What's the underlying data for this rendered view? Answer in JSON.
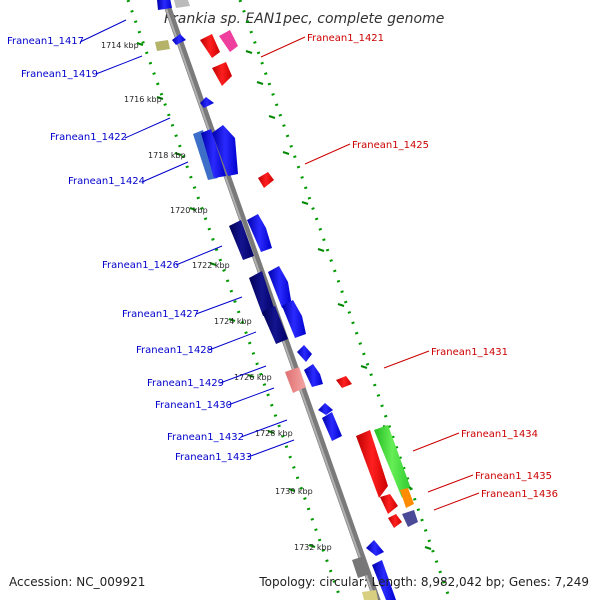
{
  "title": "Frankia sp. EAN1pec, complete genome",
  "footer": {
    "accession": "Accession: NC_009921",
    "summary": "Topology: circular; Length: 8,982,042 bp; Genes: 7,249"
  },
  "colors": {
    "forward_label": "#0000cc",
    "reverse_label": "#cc0000",
    "backbone": "#8a8a8a",
    "tick_major": "#008800",
    "tick_minor": "#009900"
  },
  "ticks": [
    "1714 kbp",
    "1716 kbp",
    "1718 kbp",
    "1720 kbp",
    "1722 kbp",
    "1724 kbp",
    "1726 kbp",
    "1728 kbp",
    "1730 kbp",
    "1732 kbp"
  ],
  "forward_labels": [
    "Franean1_1417",
    "Franean1_1419",
    "Franean1_1422",
    "Franean1_1424",
    "Franean1_1426",
    "Franean1_1427",
    "Franean1_1428",
    "Franean1_1429",
    "Franean1_1430",
    "Franean1_1432",
    "Franean1_1433"
  ],
  "reverse_labels": [
    "Franean1_1421",
    "Franean1_1425",
    "Franean1_1431",
    "Franean1_1434",
    "Franean1_1435",
    "Franean1_1436"
  ]
}
